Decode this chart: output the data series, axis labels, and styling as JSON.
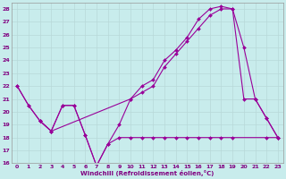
{
  "background_color": "#c8ecec",
  "grid_color": "#b8d8d8",
  "line_color": "#990099",
  "xlim": [
    -0.5,
    23.5
  ],
  "ylim": [
    16,
    28.5
  ],
  "yticks": [
    16,
    17,
    18,
    19,
    20,
    21,
    22,
    23,
    24,
    25,
    26,
    27,
    28
  ],
  "xticks": [
    0,
    1,
    2,
    3,
    4,
    5,
    6,
    7,
    8,
    9,
    10,
    11,
    12,
    13,
    14,
    15,
    16,
    17,
    18,
    19,
    20,
    21,
    22,
    23
  ],
  "xlabel": "Windchill (Refroidissement éolien,°C)",
  "line1_x": [
    0,
    1,
    2,
    3,
    4,
    5,
    6,
    7,
    8,
    9,
    10,
    11,
    12,
    13,
    14,
    15,
    16,
    17,
    18,
    19,
    20,
    21,
    22,
    23
  ],
  "line1_y": [
    22,
    20.5,
    19.3,
    18.5,
    20.5,
    20.5,
    18.2,
    15.8,
    17.5,
    19.0,
    21.0,
    22.0,
    22.5,
    24.0,
    24.8,
    25.8,
    27.2,
    28.0,
    28.2,
    28.0,
    25.0,
    21.0,
    19.5,
    18.0
  ],
  "line2_x": [
    0,
    1,
    2,
    3,
    10,
    11,
    12,
    13,
    14,
    15,
    16,
    17,
    18,
    19,
    20,
    21,
    22,
    23
  ],
  "line2_y": [
    22,
    20.5,
    19.3,
    18.5,
    21.0,
    21.5,
    22.0,
    23.5,
    24.5,
    25.5,
    26.5,
    27.5,
    28.0,
    28.0,
    21.0,
    21.0,
    19.5,
    18.0
  ],
  "line3_x": [
    2,
    3,
    4,
    5,
    6,
    7,
    8,
    9,
    10,
    11,
    12,
    13,
    14,
    15,
    16,
    17,
    18,
    19,
    22,
    23
  ],
  "line3_y": [
    19.3,
    18.5,
    20.5,
    20.5,
    18.2,
    15.8,
    17.5,
    18.0,
    18.0,
    18.0,
    18.0,
    18.0,
    18.0,
    18.0,
    18.0,
    18.0,
    18.0,
    18.0,
    18.0,
    18.0
  ]
}
